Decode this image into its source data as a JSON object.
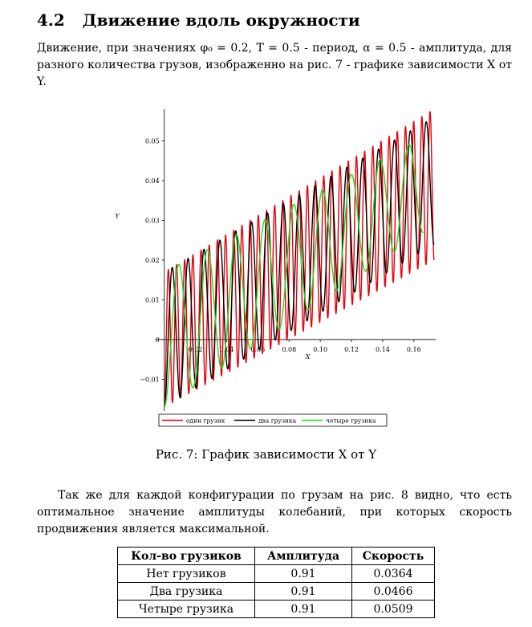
{
  "section": {
    "number": "4.2",
    "title": "Движение вдоль окружности"
  },
  "intro": "Движение, при значениях φ₀ = 0.2, T = 0.5 - период, α = 0.5 - амплитуда, для разного количества грузов, изображенно на рис. 7 - графике зависимости X от Y.",
  "caption": "Рис. 7: График зависимости X от Y",
  "paragraph2": "Так же для каждой конфигурации по грузам на рис. 8 видно, что есть оптимальное значение амплитуды колебаний, при которых скорость продвижения является максимальной.",
  "table": {
    "headers": [
      "Кол-во грузиков",
      "Амплитуда",
      "Скорость"
    ],
    "rows": [
      [
        "Нет грузиков",
        "0.91",
        "0.0364"
      ],
      [
        "Два грузика",
        "0.91",
        "0.0466"
      ],
      [
        "Четыре грузика",
        "0.91",
        "0.0509"
      ]
    ]
  },
  "chart_data": {
    "type": "line",
    "xlabel": "X",
    "ylabel": "Y",
    "xlim": [
      -0.005,
      0.174
    ],
    "ylim": [
      -0.018,
      0.058
    ],
    "x_ticks": [
      "0.02",
      "0.04",
      "0.06",
      "0.08",
      "0.10",
      "0.12",
      "0.14",
      "0.16"
    ],
    "y_ticks": [
      "-0.01",
      "0",
      "0.01",
      "0.02",
      "0.03",
      "0.04",
      "0.05"
    ],
    "legend_position": "bottom",
    "series": [
      {
        "name": "один грузик",
        "color": "#e8000b",
        "cycles": 33,
        "amp_start": 0.017,
        "amp_end": 0.019,
        "x_start": 0.0,
        "x_end": 0.173,
        "center_start": 0.0,
        "center_end": 0.039
      },
      {
        "name": "два грузика",
        "color": "#000000",
        "cycles": 17,
        "amp_start": 0.017,
        "amp_end": 0.016,
        "x_start": 0.0,
        "x_end": 0.173,
        "center_start": 0.0,
        "center_end": 0.04
      },
      {
        "name": "четыре грузика",
        "color": "#22d91c",
        "cycles": 9,
        "amp_start": 0.017,
        "amp_end": 0.012,
        "x_start": 0.0,
        "x_end": 0.166,
        "center_start": 0.0,
        "center_end": 0.039
      }
    ]
  }
}
